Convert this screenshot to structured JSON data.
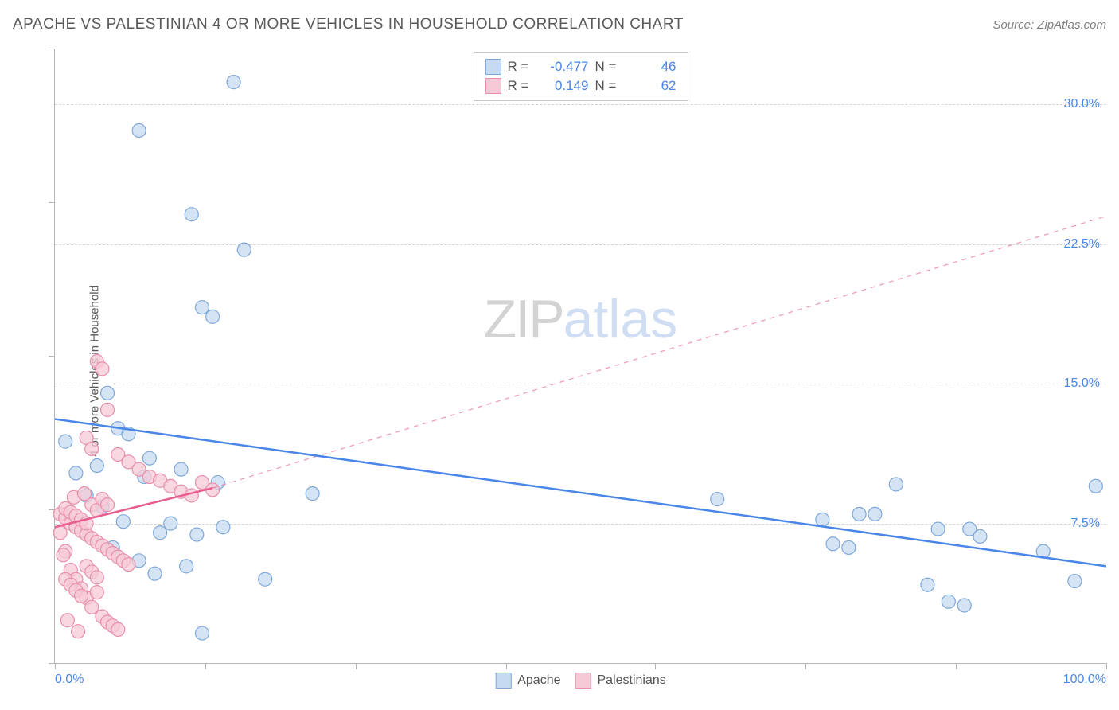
{
  "title": "APACHE VS PALESTINIAN 4 OR MORE VEHICLES IN HOUSEHOLD CORRELATION CHART",
  "source": "Source: ZipAtlas.com",
  "y_axis_label": "4 or more Vehicles in Household",
  "watermark": {
    "part1": "ZIP",
    "part2": "atlas"
  },
  "chart": {
    "type": "scatter",
    "xlim": [
      0,
      100
    ],
    "ylim": [
      0,
      33
    ],
    "x_ticks_minor": [
      0,
      14.3,
      28.6,
      42.9,
      57.1,
      71.4,
      85.7,
      100
    ],
    "y_ticks_minor": [
      0,
      8.25,
      16.5,
      24.75,
      33
    ],
    "y_gridlines": [
      7.5,
      15.0,
      22.5,
      30.0
    ],
    "y_tick_labels": [
      "7.5%",
      "15.0%",
      "22.5%",
      "30.0%"
    ],
    "x_tick_labels": {
      "left": "0.0%",
      "right": "100.0%"
    },
    "grid_color": "#d5d5d5",
    "axis_color": "#b5b5b5",
    "background_color": "#ffffff",
    "point_radius": 8.5,
    "point_stroke_width": 1.2,
    "line_width": 2.5,
    "series": [
      {
        "id": "apache",
        "label": "Apache",
        "fill": "#c5dbf2",
        "stroke": "#7fa8d9",
        "line_color": "#4a86e8",
        "r_value": "-0.477",
        "n_value": "46",
        "points": [
          [
            17,
            31.2
          ],
          [
            8,
            28.6
          ],
          [
            13,
            24.1
          ],
          [
            18,
            22.2
          ],
          [
            14,
            19.1
          ],
          [
            15,
            18.6
          ],
          [
            5,
            14.5
          ],
          [
            6,
            12.6
          ],
          [
            7,
            12.3
          ],
          [
            1,
            11.9
          ],
          [
            9,
            11.0
          ],
          [
            12,
            10.4
          ],
          [
            4,
            10.6
          ],
          [
            2,
            10.2
          ],
          [
            8.5,
            10.0
          ],
          [
            24.5,
            9.1
          ],
          [
            15.5,
            9.7
          ],
          [
            3,
            9.0
          ],
          [
            80,
            9.6
          ],
          [
            99,
            9.5
          ],
          [
            63,
            8.8
          ],
          [
            76.5,
            8.0
          ],
          [
            78,
            8.0
          ],
          [
            73,
            7.7
          ],
          [
            84,
            7.2
          ],
          [
            87,
            7.2
          ],
          [
            88,
            6.8
          ],
          [
            74,
            6.4
          ],
          [
            75.5,
            6.2
          ],
          [
            94,
            6.0
          ],
          [
            12.5,
            5.2
          ],
          [
            20,
            4.5
          ],
          [
            97,
            4.4
          ],
          [
            83,
            4.2
          ],
          [
            85,
            3.3
          ],
          [
            86.5,
            3.1
          ],
          [
            14,
            1.6
          ],
          [
            4.5,
            8.4
          ],
          [
            6.5,
            7.6
          ],
          [
            10,
            7.0
          ],
          [
            11,
            7.5
          ],
          [
            13.5,
            6.9
          ],
          [
            5.5,
            6.2
          ],
          [
            8,
            5.5
          ],
          [
            9.5,
            4.8
          ],
          [
            16,
            7.3
          ]
        ],
        "trend": {
          "x1": 0,
          "y1": 13.1,
          "x2": 100,
          "y2": 5.2
        }
      },
      {
        "id": "palestinians",
        "label": "Palestinians",
        "fill": "#f5c9d6",
        "stroke": "#e98fab",
        "line_color": "#e75d8e",
        "r_value": "0.149",
        "n_value": "62",
        "points": [
          [
            4,
            16.2
          ],
          [
            4.5,
            15.8
          ],
          [
            5,
            13.6
          ],
          [
            3,
            12.1
          ],
          [
            3.5,
            11.5
          ],
          [
            6,
            11.2
          ],
          [
            7,
            10.8
          ],
          [
            8,
            10.4
          ],
          [
            9,
            10.0
          ],
          [
            10,
            9.8
          ],
          [
            11,
            9.5
          ],
          [
            12,
            9.2
          ],
          [
            13,
            9.0
          ],
          [
            14,
            9.7
          ],
          [
            15,
            9.3
          ],
          [
            0.5,
            8.0
          ],
          [
            1,
            7.8
          ],
          [
            1.5,
            7.5
          ],
          [
            2,
            7.3
          ],
          [
            2.5,
            7.1
          ],
          [
            3,
            6.9
          ],
          [
            3.5,
            6.7
          ],
          [
            4,
            6.5
          ],
          [
            4.5,
            6.3
          ],
          [
            5,
            6.1
          ],
          [
            5.5,
            5.9
          ],
          [
            6,
            5.7
          ],
          [
            6.5,
            5.5
          ],
          [
            7,
            5.3
          ],
          [
            1,
            8.3
          ],
          [
            1.5,
            8.1
          ],
          [
            2,
            7.9
          ],
          [
            2.5,
            7.7
          ],
          [
            3,
            7.5
          ],
          [
            3.5,
            8.5
          ],
          [
            4,
            8.2
          ],
          [
            0.5,
            7.0
          ],
          [
            1,
            6.0
          ],
          [
            1.5,
            5.0
          ],
          [
            2,
            4.5
          ],
          [
            2.5,
            4.0
          ],
          [
            3,
            3.5
          ],
          [
            3.5,
            3.0
          ],
          [
            4,
            3.8
          ],
          [
            4.5,
            2.5
          ],
          [
            5,
            2.2
          ],
          [
            5.5,
            2.0
          ],
          [
            6,
            1.8
          ],
          [
            1,
            4.5
          ],
          [
            1.5,
            4.2
          ],
          [
            2,
            3.9
          ],
          [
            2.5,
            3.6
          ],
          [
            3,
            5.2
          ],
          [
            3.5,
            4.9
          ],
          [
            4,
            4.6
          ],
          [
            4.5,
            8.8
          ],
          [
            5,
            8.5
          ],
          [
            1.8,
            8.9
          ],
          [
            2.8,
            9.1
          ],
          [
            0.8,
            5.8
          ],
          [
            1.2,
            2.3
          ],
          [
            2.2,
            1.7
          ]
        ],
        "trend": {
          "x1": 0,
          "y1": 7.3,
          "x2": 15,
          "y2": 9.4
        },
        "extrapolation": {
          "x1": 15,
          "y1": 9.4,
          "x2": 100,
          "y2": 24.0
        }
      }
    ]
  },
  "legend_top": {
    "r_label": "R =",
    "n_label": "N ="
  },
  "legend_bottom": [
    "Apache",
    "Palestinians"
  ]
}
